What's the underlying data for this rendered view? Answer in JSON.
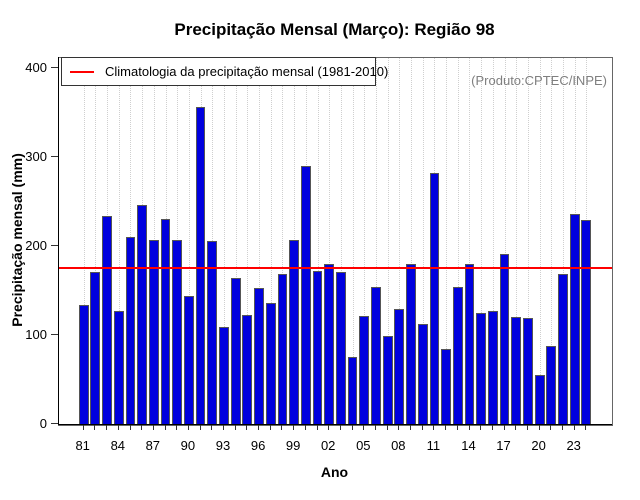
{
  "header": {
    "title": "Precipitação Mensal (Março): Região 98"
  },
  "legend": {
    "label": "Climatologia da precipitação mensal (1981-2010)"
  },
  "annotation": {
    "source_label": "(Produto:CPTEC/INPE)"
  },
  "chart_data": {
    "type": "bar",
    "title": "Precipitação Mensal (Março): Região 98",
    "xlabel": "Ano",
    "ylabel": "Precipitação mensal (mm)",
    "ylim": [
      0,
      400
    ],
    "yticks": [
      0,
      100,
      200,
      300,
      400
    ],
    "x_tick_labels": [
      "81",
      "84",
      "87",
      "90",
      "93",
      "96",
      "99",
      "02",
      "05",
      "08",
      "11",
      "14",
      "17",
      "20",
      "23"
    ],
    "x_label_every": 3,
    "grid": "vertical-dotted",
    "legend_position": "top-left",
    "climatology_value": 175,
    "climatology_period": "1981-2010",
    "colors": {
      "bar_fill": "#0000DE",
      "bar_border": "#555555",
      "climatology_line": "#FF0000",
      "grid_line": "#CFCFCF",
      "annotation_text": "#7F7F7F"
    },
    "years": [
      1981,
      1982,
      1983,
      1984,
      1985,
      1986,
      1987,
      1988,
      1989,
      1990,
      1991,
      1992,
      1993,
      1994,
      1995,
      1996,
      1997,
      1998,
      1999,
      2000,
      2001,
      2002,
      2003,
      2004,
      2005,
      2006,
      2007,
      2008,
      2009,
      2010,
      2011,
      2012,
      2013,
      2014,
      2015,
      2016,
      2017,
      2018,
      2019,
      2020,
      2021,
      2022,
      2023,
      2024
    ],
    "values": [
      135,
      172,
      235,
      128,
      211,
      247,
      208,
      232,
      208,
      145,
      357,
      207,
      110,
      165,
      124,
      154,
      137,
      170,
      208,
      291,
      173,
      181,
      172,
      76,
      123,
      155,
      100,
      130,
      181,
      113,
      283,
      86,
      155,
      181,
      126,
      128,
      192,
      121,
      120,
      56,
      89,
      170,
      237,
      230
    ]
  }
}
